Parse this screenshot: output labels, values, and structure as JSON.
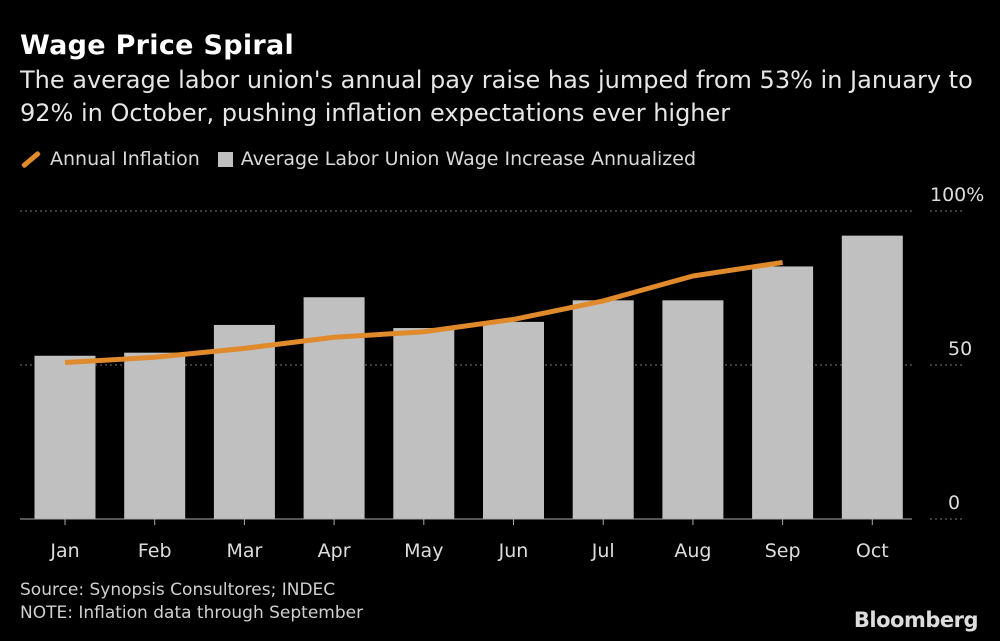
{
  "chart_data": {
    "type": "bar",
    "title": "Wage Price Spiral",
    "subtitle": "The average labor union's annual pay raise has jumped from 53% in January to 92% in October, pushing inflation expectations ever higher",
    "categories": [
      "Jan",
      "Feb",
      "Mar",
      "Apr",
      "May",
      "Jun",
      "Jul",
      "Aug",
      "Sep",
      "Oct"
    ],
    "series": [
      {
        "name": "Annual Inflation",
        "type": "line",
        "color": "#e08a2c",
        "values": [
          50.8,
          52.5,
          55.4,
          59.0,
          60.8,
          64.8,
          70.8,
          78.9,
          83.3,
          null
        ]
      },
      {
        "name": "Average Labor Union Wage Increase Annualized",
        "type": "bar",
        "color": "#c0c0c0",
        "values": [
          53,
          54,
          63,
          72,
          62,
          64,
          71,
          71,
          82,
          92
        ]
      }
    ],
    "yticks": [
      {
        "value": 0,
        "label": "0"
      },
      {
        "value": 50,
        "label": "50"
      },
      {
        "value": 100,
        "label": "100%"
      }
    ],
    "ylim": [
      0,
      100
    ],
    "grid": true,
    "legend": "top-left"
  },
  "footer": {
    "source": "Source: Synopsis Consultores; INDEC",
    "note": "NOTE: Inflation data through September",
    "logo": "Bloomberg"
  }
}
